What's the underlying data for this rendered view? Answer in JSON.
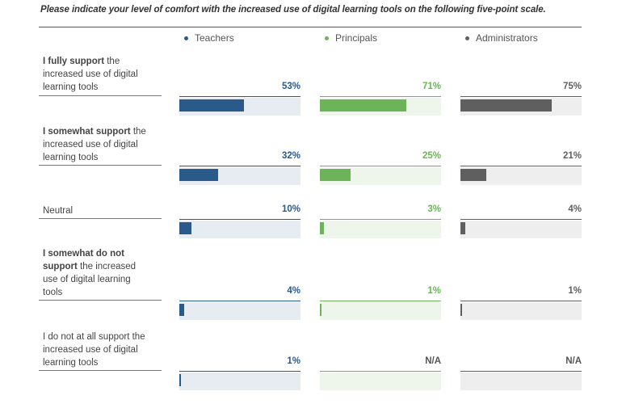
{
  "question": "Please indicate your level of comfort with the increased use of digital learning tools on the following five-point scale.",
  "colors": {
    "teachers": "#2a5a8a",
    "principals": "#6db35a",
    "administrators": "#5f5f5f",
    "teachers_track": "#e6ecf2",
    "principals_track": "#eef6ec",
    "administrators_track": "#eeeeee"
  },
  "chart_data": {
    "type": "bar",
    "title": "Please indicate your level of comfort with the increased use of digital learning tools on the following five-point scale.",
    "categories": [
      "I fully support the increased use of digital learning tools",
      "I somewhat support the increased use of digital learning tools",
      "Neutral",
      "I somewhat do not support the increased use of digital learning tools",
      "I do not at all support the increased use of digital learning tools"
    ],
    "series": [
      {
        "name": "Teachers",
        "values": [
          53,
          32,
          10,
          4,
          1
        ],
        "labels": [
          "53%",
          "32%",
          "10%",
          "4%",
          "1%"
        ]
      },
      {
        "name": "Principals",
        "values": [
          71,
          25,
          3,
          1,
          null
        ],
        "labels": [
          "71%",
          "25%",
          "3%",
          "1%",
          "N/A"
        ]
      },
      {
        "name": "Administrators",
        "values": [
          75,
          21,
          4,
          1,
          null
        ],
        "labels": [
          "75%",
          "21%",
          "4%",
          "1%",
          "N/A"
        ]
      }
    ],
    "ylim": [
      0,
      100
    ],
    "legend": "top"
  },
  "rows": [
    {
      "bold": "I fully support",
      "rest": " the increased use of digital learning tools"
    },
    {
      "bold": "I somewhat support",
      "rest": " the increased use of digital learning tools"
    },
    {
      "bold": "",
      "rest": "Neutral"
    },
    {
      "bold": "I somewhat do not support",
      "rest": " the increased use of digital learning tools"
    },
    {
      "bold": "",
      "rest": "I do not at all support the increased use of digital learning tools"
    }
  ]
}
